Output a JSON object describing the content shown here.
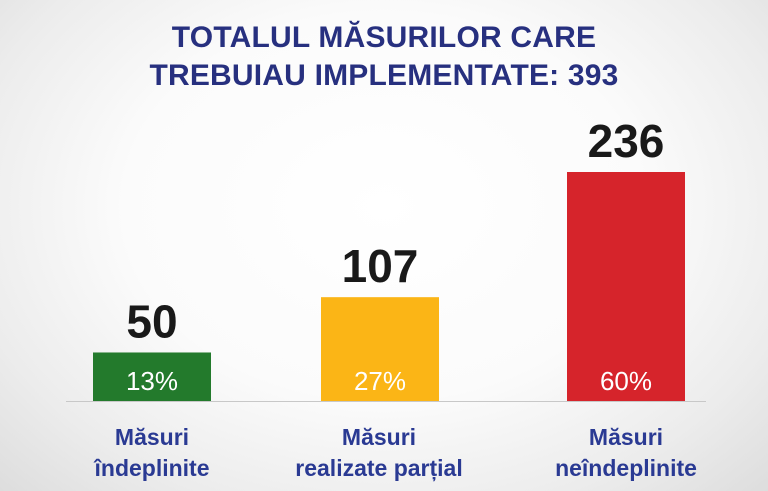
{
  "title": {
    "line1": "TOTALUL MĂSURILOR CARE",
    "line2": "TREBUIAU IMPLEMENTATE: 393"
  },
  "colors": {
    "title": "#27307f",
    "category_label": "#2a3a93",
    "value_label": "#191919",
    "percent_label": "#ffffff"
  },
  "chart_data": {
    "type": "bar",
    "title": "TOTALUL MĂSURILOR CARE TREBUIAU IMPLEMENTATE: 393",
    "total": 393,
    "categories": [
      [
        "Măsuri",
        "îndeplinite"
      ],
      [
        "Măsuri",
        "realizate parțial"
      ],
      [
        "Măsuri",
        "neîndeplinite"
      ]
    ],
    "values": [
      50,
      107,
      236
    ],
    "value_labels": [
      "50",
      "107",
      "236"
    ],
    "percent_labels": [
      "13%",
      "27%",
      "60%"
    ],
    "bar_colors": [
      "#237a2c",
      "#fbb516",
      "#d6242b"
    ],
    "xlabel": "",
    "ylabel": "",
    "ylim": [
      0,
      236
    ],
    "grid": false,
    "legend": "none"
  }
}
